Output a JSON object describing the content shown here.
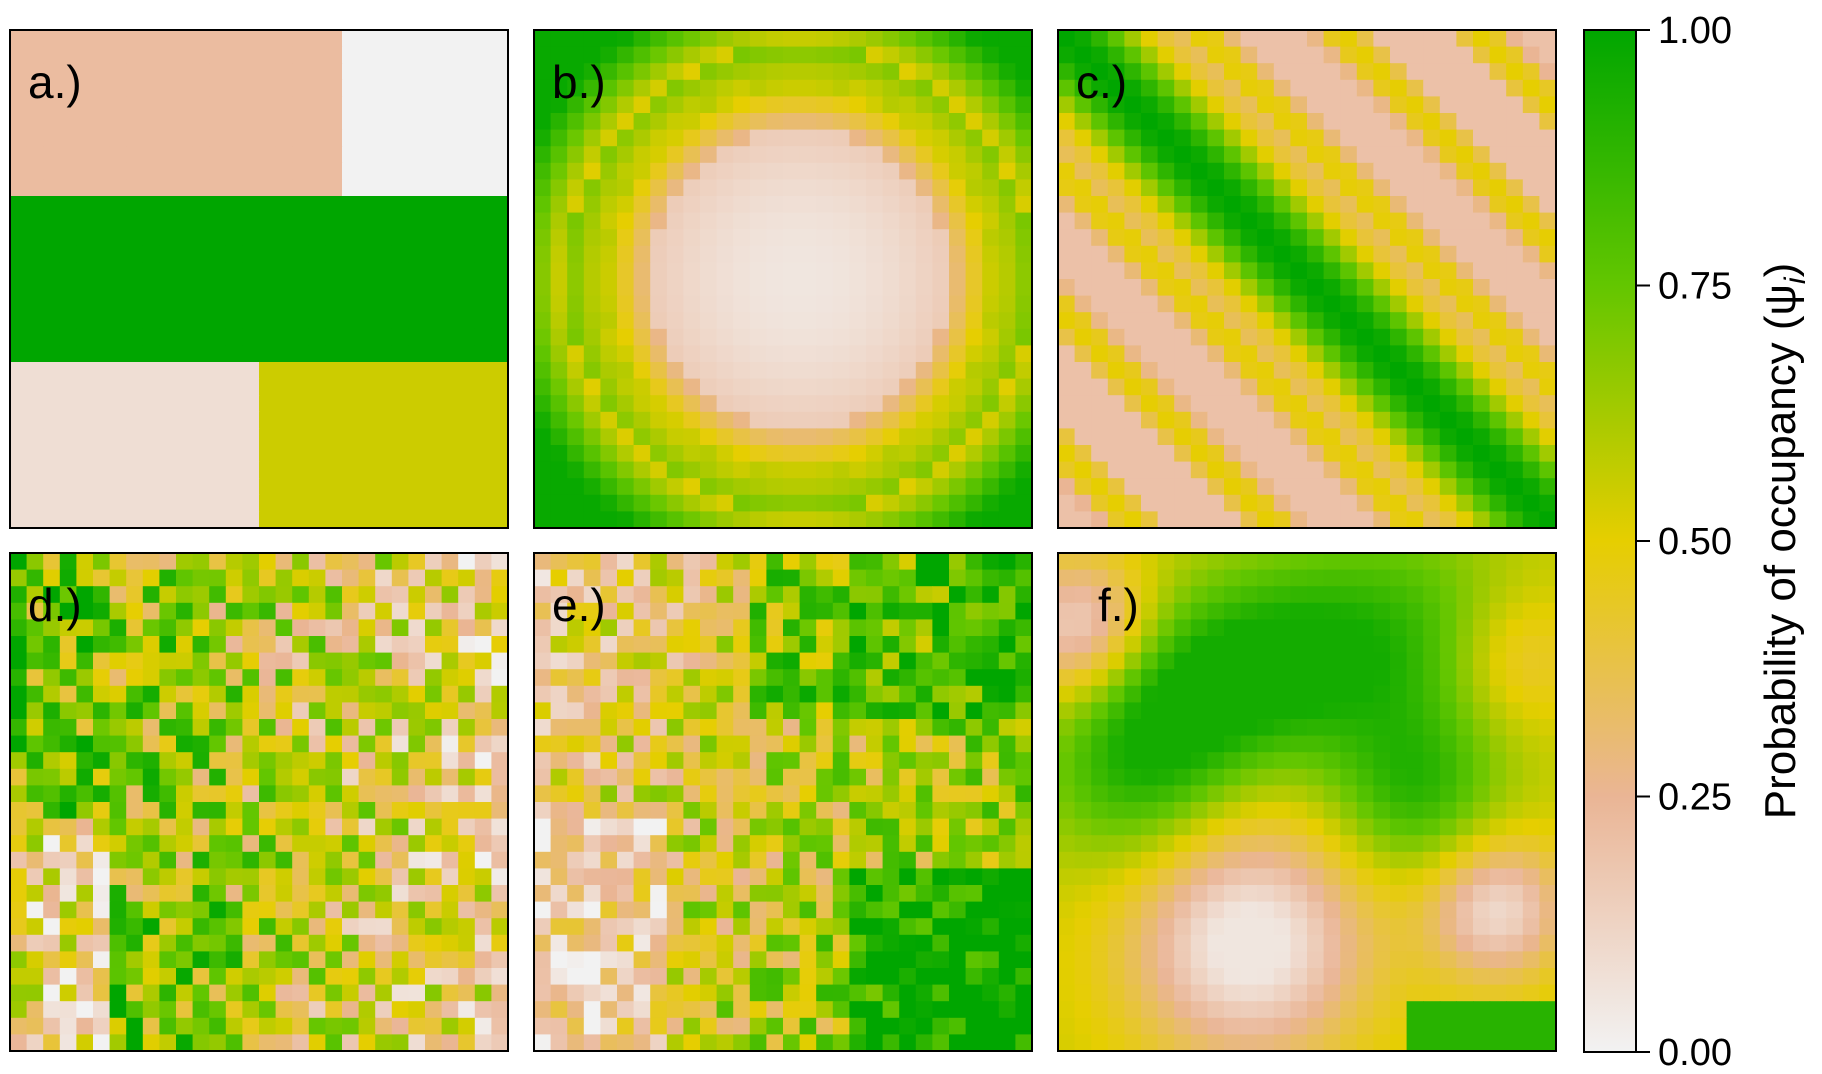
{
  "chart_data": {
    "type": "heatmap",
    "grid_size": 30,
    "colorscale": {
      "title": "Probability of occupancy (ψ",
      "title_subscript": "i",
      "title_close": ")",
      "range": [
        0,
        1
      ],
      "ticks": [
        "0.00",
        "0.25",
        "0.50",
        "0.75",
        "1.00"
      ],
      "tick_values": [
        0,
        0.25,
        0.5,
        0.75,
        1
      ],
      "colors": [
        "#f2f2f2",
        "#eab595",
        "#e6ce00",
        "#63c600",
        "#00a600"
      ],
      "orientation": "vertical, right"
    },
    "panels": [
      {
        "label": "a.)",
        "pattern": "blocks",
        "description_values": {
          "top_left": 0.22,
          "top_right": 0.0,
          "middle_band": 1.0,
          "bottom_left": 0.08,
          "bottom_right": 0.55
        }
      },
      {
        "label": "b.)",
        "pattern": "concentric",
        "center_value": 0.05,
        "edge_value": 0.98
      },
      {
        "label": "c.)",
        "pattern": "diagonal-wave",
        "min_value": 0.2,
        "max_value": 0.98
      },
      {
        "label": "d.)",
        "pattern": "random-noise",
        "min_value": 0.0,
        "max_value": 1.0
      },
      {
        "label": "e.)",
        "pattern": "random-smoothed",
        "min_value": 0.05,
        "max_value": 1.0
      },
      {
        "label": "f.)",
        "pattern": "smooth-field",
        "min_value": 0.05,
        "max_value": 0.95
      }
    ]
  }
}
